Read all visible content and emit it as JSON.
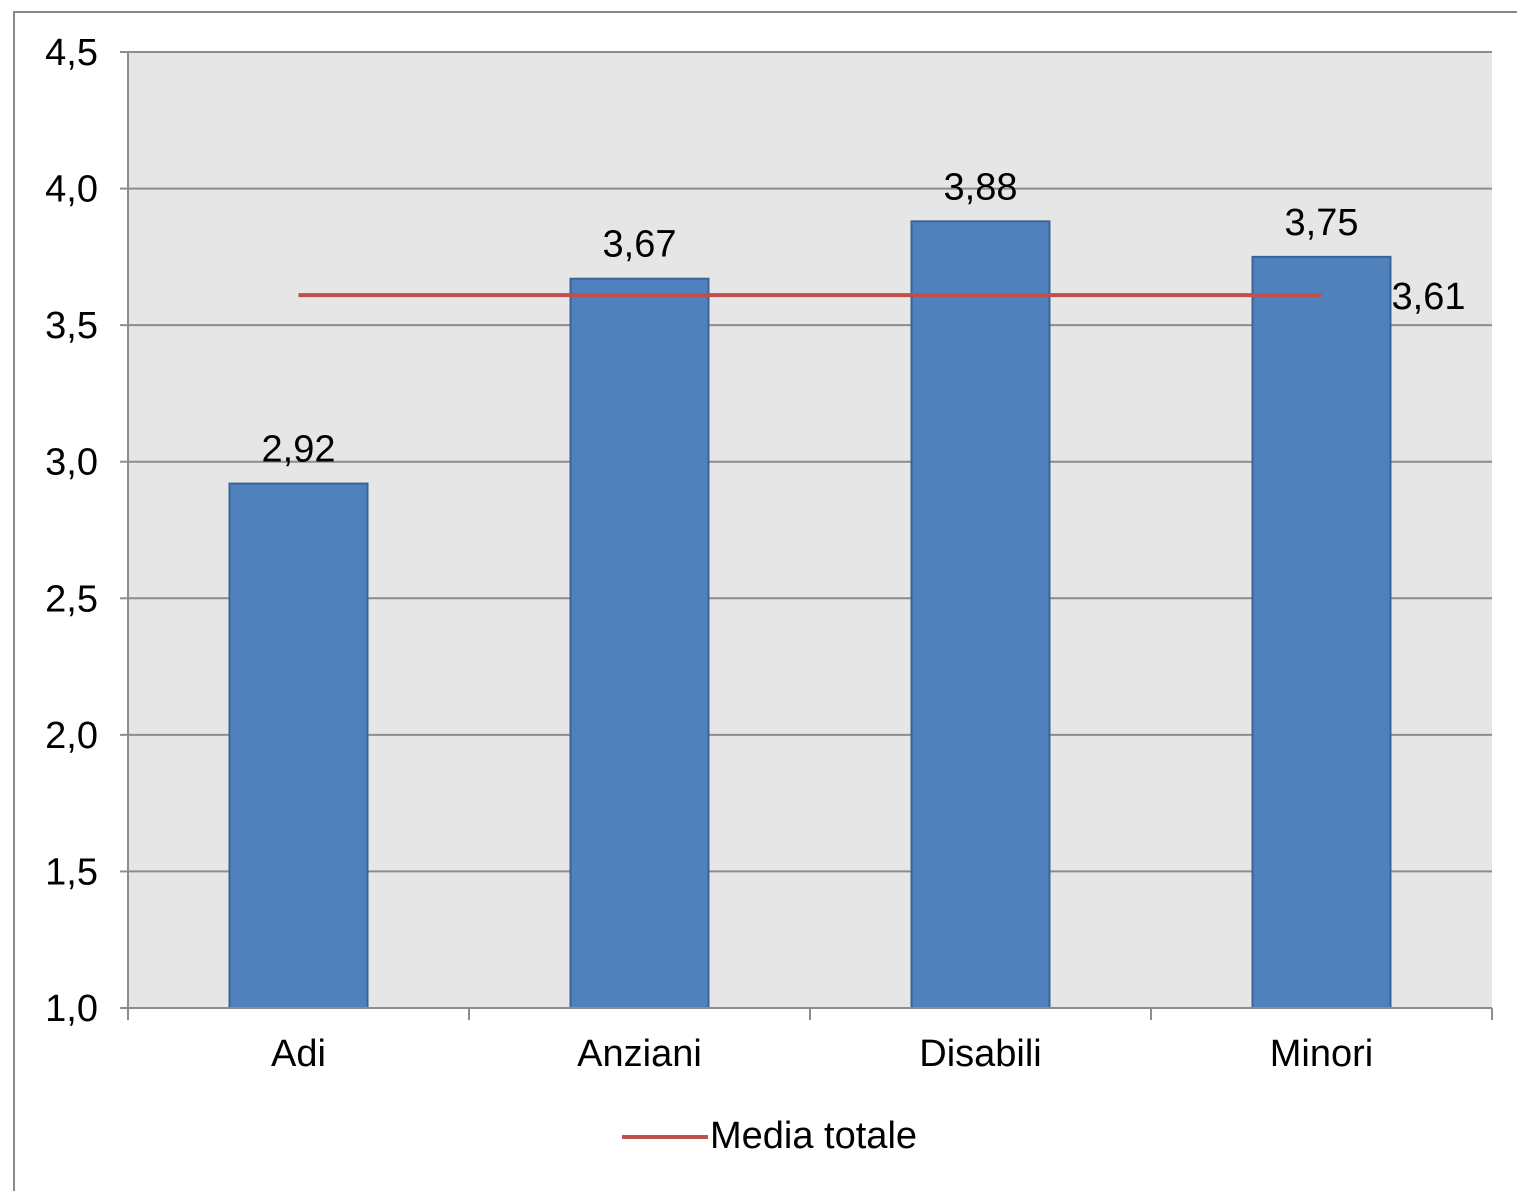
{
  "chart_data": {
    "type": "bar",
    "categories": [
      "Adi",
      "Anziani",
      "Disabili",
      "Minori"
    ],
    "series": [
      {
        "values": [
          2.92,
          3.67,
          3.88,
          3.75
        ],
        "value_labels": [
          "2,92",
          "3,67",
          "3,88",
          "3,75"
        ],
        "color": "#4f81bd"
      },
      {
        "name": "Media totale",
        "type": "line",
        "values": [
          3.61,
          3.61,
          3.61,
          3.61
        ],
        "value_label": "3,61",
        "color": "#c0504d"
      }
    ],
    "ylim": [
      1.0,
      4.5
    ],
    "yticks": [
      1.0,
      1.5,
      2.0,
      2.5,
      3.0,
      3.5,
      4.0,
      4.5
    ],
    "ytick_labels": [
      "1,0",
      "1,5",
      "2,0",
      "2,5",
      "3,0",
      "3,5",
      "4,0",
      "4,5"
    ],
    "grid": true,
    "plot_background": "#e6e6e6",
    "legend": {
      "placement": "bottom",
      "entries": [
        "Media totale"
      ]
    },
    "title": "",
    "xlabel": "",
    "ylabel": ""
  }
}
